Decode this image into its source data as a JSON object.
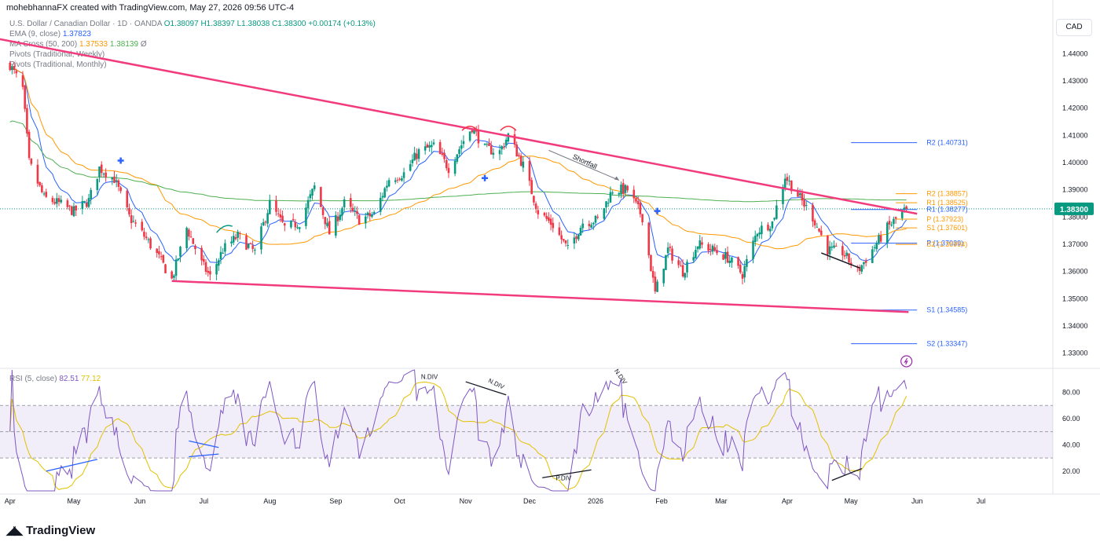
{
  "attribution": "mohebhannaFX created with TradingView.com, May 27, 2026 09:56 UTC-4",
  "currency_badge": "CAD",
  "logo_text": "TradingView",
  "legend": {
    "symbol": "U.S. Dollar / Canadian Dollar · 1D · OANDA",
    "ohlc": "O1.38097 H1.38397 L1.38038 C1.38300 +0.00174 (+0.13%)",
    "ema_label": "EMA (9, close)",
    "ema_value": "1.37823",
    "ma_label": "MA Cross (50, 200)",
    "ma_value1": "1.37533",
    "ma_value2": "1.38139",
    "ma_suffix": "Ø",
    "pivots_weekly": "Pivots (Traditional, Weekly)",
    "pivots_monthly": "Pivots (Traditional, Monthly)"
  },
  "rsi_legend": {
    "label": "RSI (5, close)",
    "value": "82.51",
    "ma_value": "77.12"
  },
  "price_badge": "1.38300",
  "annotations": {
    "shortfall": "Shortfall",
    "ndiv1": "N.DIV",
    "ndiv2": "N.DIV",
    "ndiv3": "N.DIV",
    "pdiv": "P.DIV"
  },
  "chart_data": [
    {
      "type": "candlestick",
      "title": "U.S. Dollar / Canadian Dollar · 1D · OANDA",
      "x_axis": {
        "ticks": [
          "Apr",
          "May",
          "Jun",
          "Jul",
          "Aug",
          "Sep",
          "Oct",
          "Nov",
          "Dec",
          "2026",
          "Feb",
          "Mar",
          "Apr",
          "May",
          "Jun",
          "Jul"
        ]
      },
      "y_axis": {
        "side": "right",
        "range": [
          1.325,
          1.447
        ],
        "ticks": [
          "1.44000",
          "1.43000",
          "1.42000",
          "1.41000",
          "1.40000",
          "1.39000",
          "1.38000",
          "1.37000",
          "1.36000",
          "1.35000",
          "1.34000",
          "1.33000"
        ]
      },
      "current_price": 1.383,
      "close_path": [
        {
          "x": "2025-04-01",
          "y": 1.436
        },
        {
          "x": "2025-04-07",
          "y": 1.427
        },
        {
          "x": "2025-04-10",
          "y": 1.4
        },
        {
          "x": "2025-04-17",
          "y": 1.387
        },
        {
          "x": "2025-04-24",
          "y": 1.385
        },
        {
          "x": "2025-05-01",
          "y": 1.382
        },
        {
          "x": "2025-05-08",
          "y": 1.386
        },
        {
          "x": "2025-05-13",
          "y": 1.398
        },
        {
          "x": "2025-05-20",
          "y": 1.394
        },
        {
          "x": "2025-05-27",
          "y": 1.38
        },
        {
          "x": "2025-06-04",
          "y": 1.372
        },
        {
          "x": "2025-06-10",
          "y": 1.365
        },
        {
          "x": "2025-06-16",
          "y": 1.357
        },
        {
          "x": "2025-06-23",
          "y": 1.376
        },
        {
          "x": "2025-06-30",
          "y": 1.363
        },
        {
          "x": "2025-07-04",
          "y": 1.358
        },
        {
          "x": "2025-07-10",
          "y": 1.368
        },
        {
          "x": "2025-07-17",
          "y": 1.373
        },
        {
          "x": "2025-07-25",
          "y": 1.367
        },
        {
          "x": "2025-08-01",
          "y": 1.385
        },
        {
          "x": "2025-08-08",
          "y": 1.376
        },
        {
          "x": "2025-08-15",
          "y": 1.378
        },
        {
          "x": "2025-08-22",
          "y": 1.391
        },
        {
          "x": "2025-08-29",
          "y": 1.374
        },
        {
          "x": "2025-09-05",
          "y": 1.385
        },
        {
          "x": "2025-09-12",
          "y": 1.379
        },
        {
          "x": "2025-09-19",
          "y": 1.381
        },
        {
          "x": "2025-09-26",
          "y": 1.394
        },
        {
          "x": "2025-10-03",
          "y": 1.396
        },
        {
          "x": "2025-10-10",
          "y": 1.404
        },
        {
          "x": "2025-10-17",
          "y": 1.406
        },
        {
          "x": "2025-10-24",
          "y": 1.398
        },
        {
          "x": "2025-10-31",
          "y": 1.408
        },
        {
          "x": "2025-11-04",
          "y": 1.413
        },
        {
          "x": "2025-11-10",
          "y": 1.405
        },
        {
          "x": "2025-11-17",
          "y": 1.404
        },
        {
          "x": "2025-11-21",
          "y": 1.41
        },
        {
          "x": "2025-11-28",
          "y": 1.399
        },
        {
          "x": "2025-12-05",
          "y": 1.382
        },
        {
          "x": "2025-12-12",
          "y": 1.377
        },
        {
          "x": "2025-12-19",
          "y": 1.368
        },
        {
          "x": "2025-12-26",
          "y": 1.378
        },
        {
          "x": "2026-01-02",
          "y": 1.379
        },
        {
          "x": "2026-01-09",
          "y": 1.39
        },
        {
          "x": "2026-01-16",
          "y": 1.39
        },
        {
          "x": "2026-01-23",
          "y": 1.38
        },
        {
          "x": "2026-01-29",
          "y": 1.352
        },
        {
          "x": "2026-02-04",
          "y": 1.368
        },
        {
          "x": "2026-02-11",
          "y": 1.36
        },
        {
          "x": "2026-02-18",
          "y": 1.37
        },
        {
          "x": "2026-02-25",
          "y": 1.368
        },
        {
          "x": "2026-03-04",
          "y": 1.365
        },
        {
          "x": "2026-03-11",
          "y": 1.359
        },
        {
          "x": "2026-03-18",
          "y": 1.375
        },
        {
          "x": "2026-03-25",
          "y": 1.378
        },
        {
          "x": "2026-03-31",
          "y": 1.395
        },
        {
          "x": "2026-04-06",
          "y": 1.388
        },
        {
          "x": "2026-04-13",
          "y": 1.38
        },
        {
          "x": "2026-04-20",
          "y": 1.368
        },
        {
          "x": "2026-04-27",
          "y": 1.367
        },
        {
          "x": "2026-05-04",
          "y": 1.36
        },
        {
          "x": "2026-05-11",
          "y": 1.368
        },
        {
          "x": "2026-05-18",
          "y": 1.376
        },
        {
          "x": "2026-05-27",
          "y": 1.383
        }
      ],
      "series": [
        {
          "name": "EMA (9, close)",
          "color": "#2962ff",
          "last": 1.37823
        },
        {
          "name": "MA Cross (50)",
          "color": "#ff9800",
          "last": 1.37533
        },
        {
          "name": "MA Cross (200)",
          "color": "#4caf50",
          "last": 1.38139
        }
      ],
      "pivots": [
        {
          "label": "R2 (1.40731)",
          "value": 1.40731,
          "color": "#2962ff"
        },
        {
          "label": "R2 (1.38857)",
          "value": 1.38857,
          "color": "#ff9800"
        },
        {
          "label": "R1 (1.38525)",
          "value": 1.38525,
          "color": "#ff9800"
        },
        {
          "label": "R1 (1.38277)",
          "value": 1.38277,
          "color": "#2962ff"
        },
        {
          "label": "P (1.37923)",
          "value": 1.37923,
          "color": "#ff9800"
        },
        {
          "label": "S1 (1.37601)",
          "value": 1.37601,
          "color": "#ff9800"
        },
        {
          "label": "P (1.37039)",
          "value": 1.37039,
          "color": "#2962ff"
        },
        {
          "label": "S2 (1.36994)",
          "value": 1.36994,
          "color": "#ff9800"
        },
        {
          "label": "S1 (1.34585)",
          "value": 1.34585,
          "color": "#2962ff"
        },
        {
          "label": "S2 (1.33347)",
          "value": 1.33347,
          "color": "#2962ff"
        }
      ],
      "trendlines": [
        {
          "from": {
            "x": "2025-03-26",
            "y": 1.4455
          },
          "to": {
            "x": "2026-06-01",
            "y": 1.3812
          },
          "color": "#f23b7c"
        },
        {
          "from": {
            "x": "2025-06-16",
            "y": 1.3565
          },
          "to": {
            "x": "2026-05-28",
            "y": 1.3451
          },
          "color": "#f23b7c"
        }
      ],
      "crosses": [
        {
          "x": "2025-05-23",
          "y": 1.4007
        },
        {
          "x": "2025-11-10",
          "y": 1.3943
        },
        {
          "x": "2026-01-30",
          "y": 1.3822
        }
      ]
    },
    {
      "type": "line",
      "title": "RSI (5, close)",
      "y_axis": {
        "side": "right",
        "range": [
          5,
          97
        ],
        "ticks": [
          "80.00",
          "60.00",
          "40.00",
          "20.00"
        ]
      },
      "bands": {
        "upper": 70,
        "middle": 50,
        "lower": 30
      },
      "series": [
        {
          "name": "RSI (5, close)",
          "color": "#7e57c2",
          "last": 82.51
        },
        {
          "name": "RSI MA",
          "color": "#e2c100",
          "last": 77.12
        }
      ]
    }
  ]
}
